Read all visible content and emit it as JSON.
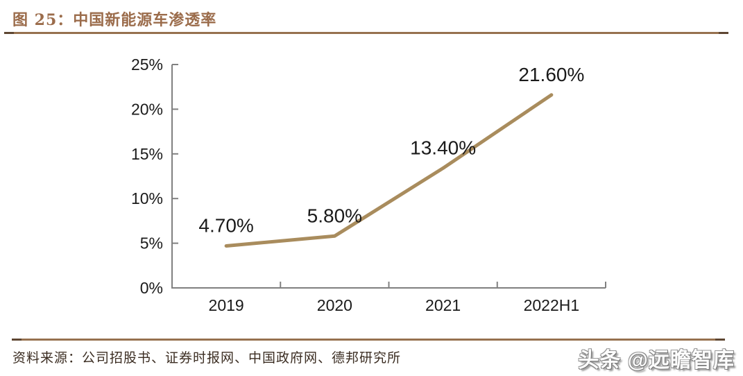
{
  "figure": {
    "title": "图 25：中国新能源车渗透率",
    "source_label": "资料来源：公司招股书、证券时报网、中国政府网、德邦研究所",
    "watermark": "头条 @远瞻智库"
  },
  "colors": {
    "title_text": "#9B6C4B",
    "rule": "#96714F",
    "rule_caps": "#5E4632",
    "series_line": "#A98C5D",
    "axis": "#808080",
    "tick_text": "#1A1A1A",
    "source_text": "#3B2D22"
  },
  "chart_data": {
    "type": "line",
    "title": "中国新能源车渗透率",
    "categories": [
      "2019",
      "2020",
      "2021",
      "2022H1"
    ],
    "values": [
      4.7,
      5.8,
      13.4,
      21.6
    ],
    "data_labels": [
      "4.70%",
      "5.80%",
      "13.40%",
      "21.60%"
    ],
    "xlabel": "",
    "ylabel": "",
    "ylim": [
      0,
      25
    ],
    "ytick_step": 5,
    "ytick_labels": [
      "0%",
      "5%",
      "10%",
      "15%",
      "20%",
      "25%"
    ],
    "grid": false,
    "legend": "none"
  }
}
